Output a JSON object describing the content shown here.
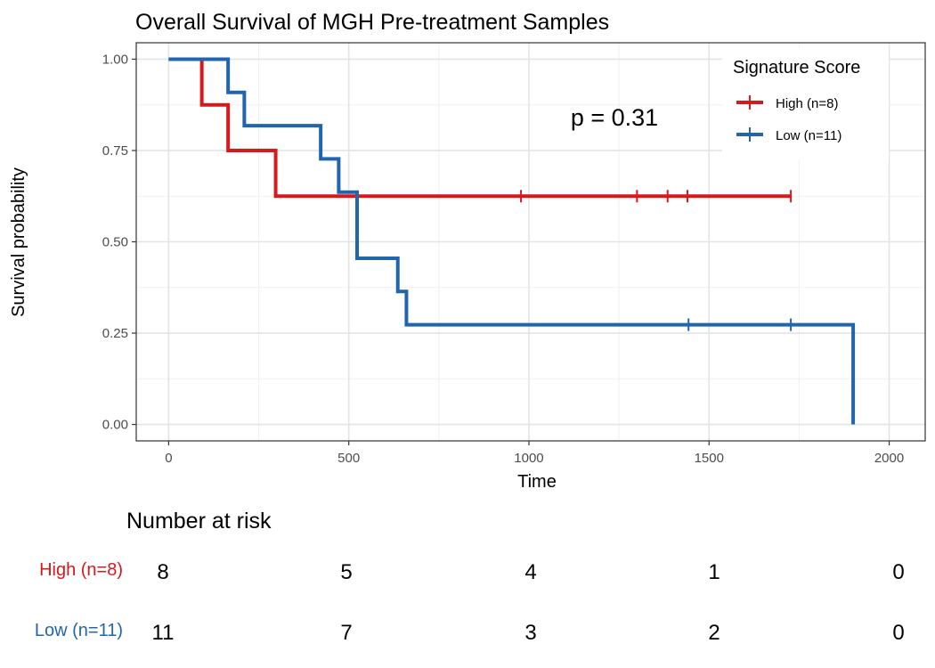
{
  "chart_data": {
    "type": "line",
    "subtype": "kaplan-meier step",
    "title": "Overall Survival of MGH Pre-treatment Samples",
    "xlabel": "Time",
    "ylabel": "Survival probability",
    "xlim": [
      -90,
      2100
    ],
    "ylim": [
      -0.045,
      1.045
    ],
    "xticks": [
      0,
      500,
      1000,
      1500,
      2000
    ],
    "xtick_labels": [
      "0",
      "500",
      "1000",
      "1500",
      "2000"
    ],
    "yticks": [
      0,
      0.25,
      0.5,
      0.75,
      1.0
    ],
    "ytick_labels": [
      "0.00",
      "0.25",
      "0.50",
      "0.75",
      "1.00"
    ],
    "grid": true,
    "legend": {
      "title": "Signature Score",
      "position": "top-right"
    },
    "annotation": "p = 0.31",
    "series": [
      {
        "name": "High (n=8)",
        "color": "#d7191c",
        "points": [
          [
            0,
            1.0
          ],
          [
            92,
            1.0
          ],
          [
            92,
            0.875
          ],
          [
            165,
            0.875
          ],
          [
            165,
            0.75
          ],
          [
            297,
            0.75
          ],
          [
            297,
            0.625
          ],
          [
            1727,
            0.625
          ]
        ],
        "censor_times": [
          978,
          1300,
          1385,
          1440,
          1727
        ],
        "censor_value": 0.625
      },
      {
        "name": "Low (n=11)",
        "color": "#2166ac",
        "points": [
          [
            0,
            1.0
          ],
          [
            165,
            1.0
          ],
          [
            165,
            0.909
          ],
          [
            210,
            0.909
          ],
          [
            210,
            0.818
          ],
          [
            422,
            0.818
          ],
          [
            422,
            0.727
          ],
          [
            472,
            0.727
          ],
          [
            472,
            0.636
          ],
          [
            523,
            0.636
          ],
          [
            523,
            0.455
          ],
          [
            636,
            0.455
          ],
          [
            636,
            0.364
          ],
          [
            660,
            0.364
          ],
          [
            660,
            0.273
          ],
          [
            1900,
            0.273
          ],
          [
            1900,
            0.0
          ]
        ],
        "censor_times": [
          1443,
          1727
        ],
        "censor_value": 0.273
      }
    ]
  },
  "risk_table": {
    "title": "Number at risk",
    "times": [
      0,
      500,
      1000,
      1500,
      2000
    ],
    "rows": [
      {
        "label": "High (n=8)",
        "color": "#d7191c",
        "values": [
          "8",
          "5",
          "4",
          "1",
          "0"
        ]
      },
      {
        "label": "Low (n=11)",
        "color": "#2166ac",
        "values": [
          "11",
          "7",
          "3",
          "2",
          "0"
        ]
      }
    ]
  }
}
